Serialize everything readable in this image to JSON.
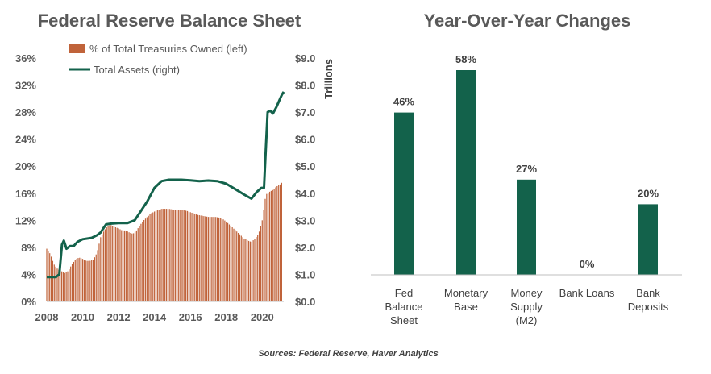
{
  "source": "Sources: Federal Reserve, Haver Analytics",
  "colors": {
    "bar_brown": "#C0633A",
    "line_green": "#13624B",
    "bar_green": "#13624B",
    "axis": "#BFBFBF"
  },
  "chart_data": [
    {
      "type": "bar+line",
      "title": "Federal Reserve Balance Sheet",
      "x_ticks": [
        "2008",
        "2010",
        "2012",
        "2014",
        "2016",
        "2018",
        "2020"
      ],
      "x_range": [
        2008.0,
        2021.2
      ],
      "y_left": {
        "ticks": [
          "0%",
          "4%",
          "8%",
          "12%",
          "16%",
          "20%",
          "24%",
          "28%",
          "32%",
          "36%"
        ],
        "range": [
          0,
          36
        ]
      },
      "y_right": {
        "label": "Trillions",
        "ticks": [
          "$0.0",
          "$1.0",
          "$2.0",
          "$3.0",
          "$4.0",
          "$5.0",
          "$6.0",
          "$7.0",
          "$8.0",
          "$9.0"
        ],
        "range": [
          0,
          9
        ]
      },
      "legend": [
        {
          "name": "% of Total Treasuries Owned (left)",
          "kind": "bar"
        },
        {
          "name": "Total Assets (right)",
          "kind": "line"
        }
      ],
      "series": [
        {
          "name": "% of Total Treasuries Owned (left)",
          "kind": "bar",
          "points": [
            [
              2008.0,
              7.8
            ],
            [
              2008.2,
              7.0
            ],
            [
              2008.4,
              5.5
            ],
            [
              2008.6,
              4.8
            ],
            [
              2008.8,
              4.5
            ],
            [
              2009.0,
              4.2
            ],
            [
              2009.2,
              4.5
            ],
            [
              2009.4,
              5.5
            ],
            [
              2009.6,
              6.2
            ],
            [
              2009.8,
              6.5
            ],
            [
              2010.0,
              6.3
            ],
            [
              2010.2,
              6.0
            ],
            [
              2010.4,
              6.0
            ],
            [
              2010.6,
              6.2
            ],
            [
              2010.8,
              7.2
            ],
            [
              2011.0,
              9.5
            ],
            [
              2011.2,
              10.5
            ],
            [
              2011.4,
              11.2
            ],
            [
              2011.6,
              11.3
            ],
            [
              2011.8,
              11.0
            ],
            [
              2012.0,
              10.8
            ],
            [
              2012.2,
              10.5
            ],
            [
              2012.4,
              10.5
            ],
            [
              2012.6,
              10.2
            ],
            [
              2012.8,
              10.0
            ],
            [
              2013.0,
              10.5
            ],
            [
              2013.2,
              11.3
            ],
            [
              2013.4,
              12.0
            ],
            [
              2013.6,
              12.5
            ],
            [
              2013.8,
              13.0
            ],
            [
              2014.0,
              13.3
            ],
            [
              2014.2,
              13.5
            ],
            [
              2014.4,
              13.7
            ],
            [
              2014.6,
              13.7
            ],
            [
              2014.8,
              13.7
            ],
            [
              2015.0,
              13.6
            ],
            [
              2015.2,
              13.5
            ],
            [
              2015.4,
              13.5
            ],
            [
              2015.6,
              13.5
            ],
            [
              2015.8,
              13.4
            ],
            [
              2016.0,
              13.2
            ],
            [
              2016.2,
              13.0
            ],
            [
              2016.4,
              12.8
            ],
            [
              2016.6,
              12.7
            ],
            [
              2016.8,
              12.6
            ],
            [
              2017.0,
              12.5
            ],
            [
              2017.2,
              12.5
            ],
            [
              2017.4,
              12.5
            ],
            [
              2017.6,
              12.4
            ],
            [
              2017.8,
              12.2
            ],
            [
              2018.0,
              11.8
            ],
            [
              2018.2,
              11.3
            ],
            [
              2018.4,
              10.8
            ],
            [
              2018.6,
              10.3
            ],
            [
              2018.8,
              9.8
            ],
            [
              2019.0,
              9.3
            ],
            [
              2019.2,
              9.0
            ],
            [
              2019.4,
              8.8
            ],
            [
              2019.6,
              9.3
            ],
            [
              2019.8,
              10.0
            ],
            [
              2020.0,
              12.0
            ],
            [
              2020.2,
              15.8
            ],
            [
              2020.4,
              16.2
            ],
            [
              2020.6,
              16.5
            ],
            [
              2020.8,
              17.0
            ],
            [
              2021.0,
              17.3
            ],
            [
              2021.1,
              17.6
            ]
          ]
        },
        {
          "name": "Total Assets (right)",
          "kind": "line",
          "points": [
            [
              2008.0,
              0.9
            ],
            [
              2008.5,
              0.9
            ],
            [
              2008.7,
              1.0
            ],
            [
              2008.85,
              2.1
            ],
            [
              2008.95,
              2.25
            ],
            [
              2009.1,
              1.95
            ],
            [
              2009.3,
              2.05
            ],
            [
              2009.5,
              2.05
            ],
            [
              2009.7,
              2.2
            ],
            [
              2010.0,
              2.3
            ],
            [
              2010.5,
              2.35
            ],
            [
              2010.8,
              2.45
            ],
            [
              2011.0,
              2.55
            ],
            [
              2011.3,
              2.85
            ],
            [
              2011.6,
              2.88
            ],
            [
              2012.0,
              2.9
            ],
            [
              2012.5,
              2.9
            ],
            [
              2012.9,
              3.0
            ],
            [
              2013.2,
              3.3
            ],
            [
              2013.6,
              3.7
            ],
            [
              2014.0,
              4.2
            ],
            [
              2014.4,
              4.45
            ],
            [
              2014.8,
              4.5
            ],
            [
              2015.5,
              4.5
            ],
            [
              2016.0,
              4.48
            ],
            [
              2016.5,
              4.45
            ],
            [
              2017.0,
              4.47
            ],
            [
              2017.5,
              4.45
            ],
            [
              2018.0,
              4.35
            ],
            [
              2018.5,
              4.15
            ],
            [
              2019.0,
              3.95
            ],
            [
              2019.4,
              3.8
            ],
            [
              2019.7,
              4.05
            ],
            [
              2019.95,
              4.2
            ],
            [
              2020.1,
              4.2
            ],
            [
              2020.2,
              5.6
            ],
            [
              2020.3,
              7.0
            ],
            [
              2020.45,
              7.05
            ],
            [
              2020.6,
              6.95
            ],
            [
              2020.8,
              7.2
            ],
            [
              2021.0,
              7.5
            ],
            [
              2021.1,
              7.65
            ],
            [
              2021.2,
              7.75
            ]
          ]
        }
      ]
    },
    {
      "type": "bar",
      "title": "Year-Over-Year Changes",
      "categories": [
        "Fed\nBalance\nSheet",
        "Monetary\nBase",
        "Money\nSupply\n(M2)",
        "Bank Loans",
        "Bank\nDeposits"
      ],
      "values": [
        46,
        58,
        27,
        0,
        20
      ],
      "data_labels": [
        "46%",
        "58%",
        "27%",
        "0%",
        "20%"
      ],
      "ylim": [
        0,
        66
      ]
    }
  ]
}
